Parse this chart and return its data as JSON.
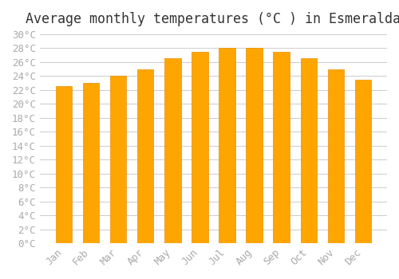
{
  "title": "Average monthly temperatures (°C ) in Esmeralda",
  "months": [
    "Jan",
    "Feb",
    "Mar",
    "Apr",
    "May",
    "Jun",
    "Jul",
    "Aug",
    "Sep",
    "Oct",
    "Nov",
    "Dec"
  ],
  "values": [
    22.5,
    23.0,
    24.0,
    25.0,
    26.5,
    27.5,
    28.0,
    28.0,
    27.5,
    26.5,
    25.0,
    23.5
  ],
  "bar_color": "#FFA500",
  "bar_edge_color": "#E8900A",
  "ylim": [
    0,
    30
  ],
  "ytick_step": 2,
  "background_color": "#ffffff",
  "grid_color": "#cccccc",
  "title_fontsize": 12,
  "tick_fontsize": 9,
  "tick_color": "#aaaaaa",
  "font_family": "monospace"
}
